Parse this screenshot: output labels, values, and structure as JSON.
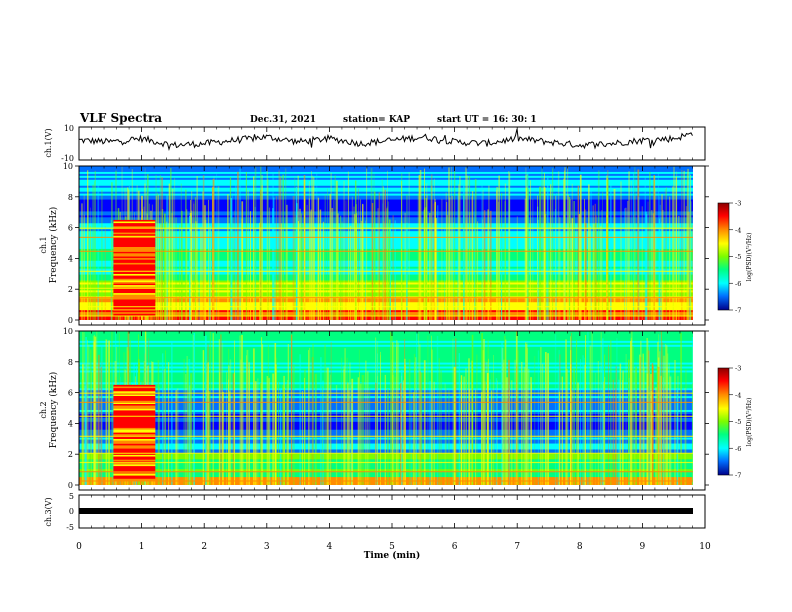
{
  "header": {
    "title": "VLF Spectra",
    "date": "Dec.31, 2021",
    "station": "station= KAP",
    "start": "start  UT =   16: 30: 1"
  },
  "colorbar": {
    "label": "log(PSD)(V²/Hz)",
    "ticks": [
      "-3",
      "-4",
      "-5",
      "-6",
      "-7"
    ],
    "colors": [
      "#8b0000",
      "#ff0000",
      "#ff8c00",
      "#ffff00",
      "#7cfc00",
      "#00ff80",
      "#00ffff",
      "#0080ff",
      "#0000ff",
      "#00008b"
    ]
  },
  "chart_data": [
    {
      "type": "line",
      "panel": "ch1-waveform",
      "ylabel": "ch.1(V)",
      "ylim": [
        -10,
        10
      ],
      "yticks": [
        "10",
        "-10"
      ],
      "xlim": [
        0,
        10
      ],
      "series": [
        {
          "x": [
            0,
            0.5,
            1.0,
            1.5,
            2.0,
            2.5,
            3.0,
            3.5,
            4.0,
            4.5,
            5.0,
            5.5,
            6.0,
            6.5,
            7.0,
            7.5,
            8.0,
            8.5,
            9.0,
            9.5,
            9.8
          ],
          "values": [
            2,
            1,
            3,
            -1,
            0,
            2,
            4,
            1,
            3,
            0,
            2,
            4,
            1,
            0,
            3,
            1,
            -1,
            0,
            2,
            3,
            6
          ]
        }
      ]
    },
    {
      "type": "heatmap",
      "panel": "ch1-spectrogram",
      "ylabel": "ch.1 Frequency (kHz)",
      "yticks": [
        "0",
        "2",
        "4",
        "6",
        "8",
        "10"
      ],
      "ylim": [
        0,
        10
      ],
      "xlim": [
        0,
        10
      ],
      "zlabel": "log(PSD)(V²/Hz)",
      "zlim": [
        -7,
        -3
      ]
    },
    {
      "type": "heatmap",
      "panel": "ch2-spectrogram",
      "ylabel": "ch.2 Frequency (kHz)",
      "yticks": [
        "0",
        "2",
        "4",
        "6",
        "8",
        "10"
      ],
      "ylim": [
        0,
        10
      ],
      "xlim": [
        0,
        10
      ],
      "zlabel": "log(PSD)(V²/Hz)",
      "zlim": [
        -7,
        -3
      ]
    },
    {
      "type": "line",
      "panel": "ch3-waveform",
      "ylabel": "ch.3(V)",
      "ylim": [
        -5,
        5
      ],
      "yticks": [
        "5",
        "0",
        "-5"
      ],
      "xlim": [
        0,
        10
      ],
      "series": [
        {
          "x": [
            0,
            9.8
          ],
          "values": [
            0,
            0
          ]
        }
      ]
    }
  ],
  "xaxis": {
    "label": "Time (min)",
    "ticks": [
      "0",
      "1",
      "2",
      "3",
      "4",
      "5",
      "6",
      "7",
      "8",
      "9",
      "10"
    ]
  }
}
